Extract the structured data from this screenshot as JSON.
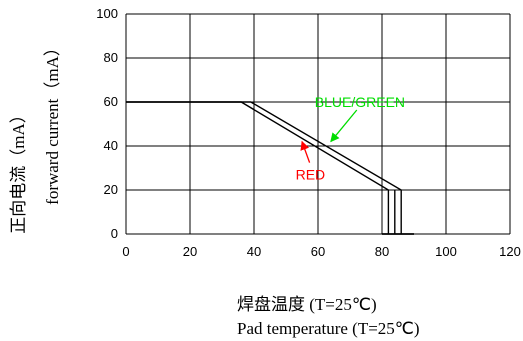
{
  "chart_data": {
    "type": "line",
    "xlabel": [
      "焊盘温度 (T=25℃)",
      "Pad temperature  (T=25℃)"
    ],
    "ylabel": [
      "正向电流（mA）",
      "forward current（mA）"
    ],
    "xlim": [
      0,
      120
    ],
    "ylim": [
      0,
      100
    ],
    "xticks": [
      0,
      20,
      40,
      60,
      80,
      100,
      120
    ],
    "yticks": [
      0,
      20,
      40,
      60,
      80,
      100
    ],
    "grid": true,
    "series": [
      {
        "name": "RED",
        "color": "#ff0000",
        "x": [
          0,
          36,
          82,
          82,
          80,
          90
        ],
        "y": [
          60,
          60,
          20,
          0,
          0,
          0
        ]
      },
      {
        "name": "BLUE/GREEN",
        "color": "#00dd00",
        "x": [
          0,
          39,
          86,
          86,
          80,
          90
        ],
        "y": [
          60,
          60,
          20,
          0,
          0,
          0
        ]
      },
      {
        "name": "",
        "color": "#000000",
        "x": [
          84,
          84
        ],
        "y": [
          20,
          0
        ]
      }
    ],
    "annotations": [
      {
        "text": "BLUE/GREEN",
        "color": "#00dd00",
        "x": 59,
        "y": 60,
        "arrow_to": [
          64,
          42
        ]
      },
      {
        "text": "RED",
        "color": "#ff0000",
        "x": 53,
        "y": 27,
        "arrow_to": [
          55,
          42
        ]
      }
    ]
  }
}
